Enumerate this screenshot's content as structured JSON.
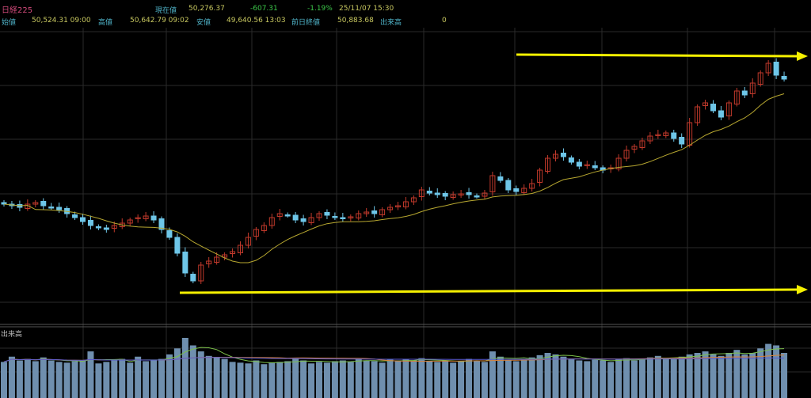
{
  "header": {
    "title": "日経225",
    "current_label": "現在値",
    "current_value": "50,276.37",
    "change": "-607.31",
    "change_pct": "-1.19%",
    "datetime": "25/11/07  15:30",
    "open_label": "始値",
    "open_value": "50,524.31 09:00",
    "high_label": "高値",
    "high_value": "50,642.79 09:02",
    "low_label": "安値",
    "low_value": "49,640.56 13:03",
    "prev_close_label": "前日終値",
    "prev_close_value": "50,883.68",
    "volume_label": "出来高",
    "volume_value": "0"
  },
  "volume_panel": {
    "label": "出来高"
  },
  "colors": {
    "up": "#c0392b",
    "down": "#6ec6e8",
    "ma": "#b8a830",
    "arrow": "#f5f000",
    "volume": "#6f8fae"
  },
  "chart_data": {
    "type": "candlestick",
    "title": "日経225",
    "note": "relative price index (no axis labels shown)",
    "closes": [
      142,
      140,
      138,
      142,
      144,
      140,
      138,
      135,
      130,
      125,
      120,
      115,
      112,
      110,
      115,
      118,
      122,
      125,
      127,
      122,
      110,
      100,
      80,
      55,
      45,
      65,
      70,
      75,
      78,
      82,
      90,
      100,
      110,
      115,
      125,
      130,
      128,
      122,
      120,
      125,
      130,
      128,
      125,
      124,
      126,
      130,
      132,
      130,
      135,
      138,
      140,
      145,
      150,
      160,
      156,
      154,
      152,
      154,
      155,
      154,
      152,
      156,
      178,
      172,
      160,
      158,
      162,
      168,
      185,
      200,
      205,
      202,
      195,
      190,
      192,
      188,
      185,
      188,
      200,
      210,
      215,
      222,
      228,
      230,
      232,
      225,
      218,
      245,
      265,
      270,
      260,
      252,
      270,
      285,
      280,
      295,
      308,
      320,
      305,
      300
    ],
    "volumes": [
      48,
      55,
      50,
      52,
      49,
      54,
      50,
      48,
      47,
      49,
      50,
      62,
      46,
      48,
      50,
      52,
      47,
      55,
      49,
      50,
      52,
      58,
      66,
      80,
      70,
      62,
      56,
      54,
      52,
      48,
      47,
      46,
      50,
      45,
      47,
      48,
      49,
      52,
      50,
      46,
      48,
      47,
      49,
      50,
      48,
      52,
      50,
      49,
      47,
      51,
      50,
      52,
      50,
      53,
      49,
      48,
      50,
      47,
      49,
      52,
      50,
      48,
      62,
      55,
      50,
      49,
      52,
      54,
      57,
      60,
      58,
      55,
      52,
      50,
      49,
      51,
      50,
      48,
      52,
      53,
      50,
      52,
      54,
      56,
      53,
      52,
      55,
      58,
      60,
      62,
      58,
      56,
      60,
      64,
      58,
      60,
      66,
      72,
      70,
      60
    ],
    "ma_period": 10,
    "annotations": [
      "resistance arrow (top)",
      "support arrow (bottom)"
    ]
  }
}
